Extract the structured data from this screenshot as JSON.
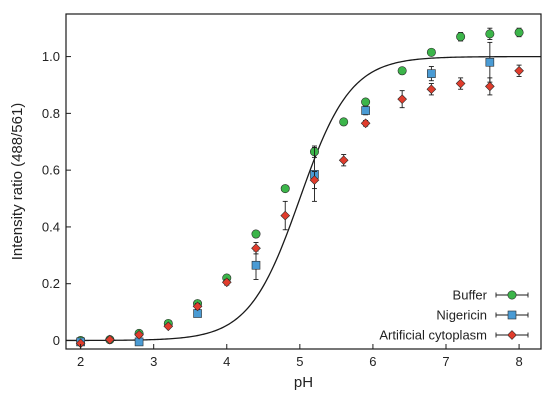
{
  "chart_data": {
    "type": "scatter",
    "title": "",
    "xlabel": "pH",
    "ylabel": "Intensity ratio (488/561)",
    "xlim": [
      1.8,
      8.3
    ],
    "ylim": [
      -0.03,
      1.15
    ],
    "xticks": [
      "2",
      "3",
      "4",
      "5",
      "6",
      "7",
      "8"
    ],
    "yticks": [
      "0",
      "0.2",
      "0.4",
      "0.6",
      "0.8",
      "1.0"
    ],
    "grid": false,
    "legend_position": "bottom-right",
    "fit_curve": {
      "pKa": 5.0,
      "hill": 1.25,
      "bottom": 0.0,
      "top": 1.0,
      "color": "#1a1a1a"
    },
    "series": [
      {
        "name": "Buffer",
        "marker": "circle",
        "color": "#3cb54a",
        "points": [
          {
            "x": 2.0,
            "y": 0.0,
            "err": 0.005
          },
          {
            "x": 2.4,
            "y": 0.003,
            "err": 0.005
          },
          {
            "x": 2.8,
            "y": 0.025,
            "err": 0.005
          },
          {
            "x": 3.2,
            "y": 0.06,
            "err": 0.005
          },
          {
            "x": 3.6,
            "y": 0.13,
            "err": 0.01
          },
          {
            "x": 4.0,
            "y": 0.22,
            "err": 0.01
          },
          {
            "x": 4.4,
            "y": 0.375,
            "err": 0.01
          },
          {
            "x": 4.8,
            "y": 0.535,
            "err": 0.01
          },
          {
            "x": 5.2,
            "y": 0.665,
            "err": 0.02
          },
          {
            "x": 5.6,
            "y": 0.77,
            "err": 0.01
          },
          {
            "x": 5.9,
            "y": 0.84,
            "err": 0.01
          },
          {
            "x": 6.4,
            "y": 0.95,
            "err": 0.01
          },
          {
            "x": 6.8,
            "y": 1.015,
            "err": 0.01
          },
          {
            "x": 7.2,
            "y": 1.07,
            "err": 0.015
          },
          {
            "x": 7.6,
            "y": 1.08,
            "err": 0.02
          },
          {
            "x": 8.0,
            "y": 1.085,
            "err": 0.015
          }
        ]
      },
      {
        "name": "Nigericin",
        "marker": "square",
        "color": "#4a9bd4",
        "points": [
          {
            "x": 2.0,
            "y": -0.005,
            "err": 0.005
          },
          {
            "x": 2.8,
            "y": -0.005,
            "err": 0.005
          },
          {
            "x": 3.6,
            "y": 0.095,
            "err": 0.01
          },
          {
            "x": 4.4,
            "y": 0.265,
            "err": 0.05
          },
          {
            "x": 5.2,
            "y": 0.585,
            "err": 0.095
          },
          {
            "x": 5.9,
            "y": 0.81,
            "err": 0.015
          },
          {
            "x": 6.8,
            "y": 0.94,
            "err": 0.025
          },
          {
            "x": 7.6,
            "y": 0.98,
            "err": 0.07
          }
        ]
      },
      {
        "name": "Artificial cytoplasm",
        "marker": "diamond",
        "color": "#e03c2c",
        "points": [
          {
            "x": 2.0,
            "y": -0.01,
            "err": 0.005
          },
          {
            "x": 2.4,
            "y": 0.003,
            "err": 0.005
          },
          {
            "x": 2.8,
            "y": 0.02,
            "err": 0.005
          },
          {
            "x": 3.2,
            "y": 0.05,
            "err": 0.005
          },
          {
            "x": 3.6,
            "y": 0.12,
            "err": 0.01
          },
          {
            "x": 4.0,
            "y": 0.205,
            "err": 0.01
          },
          {
            "x": 4.4,
            "y": 0.325,
            "err": 0.02
          },
          {
            "x": 4.8,
            "y": 0.44,
            "err": 0.05
          },
          {
            "x": 5.2,
            "y": 0.565,
            "err": 0.03
          },
          {
            "x": 5.6,
            "y": 0.635,
            "err": 0.02
          },
          {
            "x": 5.9,
            "y": 0.765,
            "err": 0.01
          },
          {
            "x": 6.4,
            "y": 0.85,
            "err": 0.03
          },
          {
            "x": 6.8,
            "y": 0.885,
            "err": 0.02
          },
          {
            "x": 7.2,
            "y": 0.905,
            "err": 0.02
          },
          {
            "x": 7.6,
            "y": 0.895,
            "err": 0.03
          },
          {
            "x": 8.0,
            "y": 0.95,
            "err": 0.02
          }
        ]
      }
    ]
  }
}
